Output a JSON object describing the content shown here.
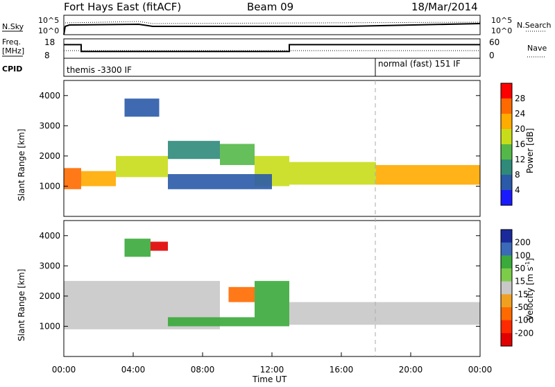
{
  "header": {
    "radar": "Fort Hays East (fitACF)",
    "beam": "Beam 09",
    "date": "18/Mar/2014"
  },
  "noise_panel": {
    "left_label": "N.Sky",
    "right_label": "N.Search",
    "left_ticks": [
      "10^5",
      "10^0"
    ],
    "right_ticks": [
      "10^5",
      "10^0"
    ]
  },
  "freq_panel": {
    "left_label_1": "Freq.",
    "left_label_2": "[MHz]",
    "right_label": "Nave",
    "left_ticks": [
      "18",
      "8"
    ],
    "right_ticks": [
      "60",
      "0"
    ],
    "freq_steps": [
      {
        "t_start": 0.0,
        "t_end": 1.0,
        "mhz": 15.0
      },
      {
        "t_start": 1.0,
        "t_end": 13.0,
        "mhz": 11.5
      },
      {
        "t_start": 13.0,
        "t_end": 24.0,
        "mhz": 15.0
      }
    ]
  },
  "cpid_panel": {
    "label": "CPID",
    "segments": [
      "themis -3300 IF",
      "normal (fast) 151 IF"
    ],
    "change_time": "18:00"
  },
  "chart_data": [
    {
      "type": "heatmap",
      "name": "power",
      "ylabel": "Slant Range [km]",
      "yticks": [
        1000,
        2000,
        3000,
        4000
      ],
      "ylim": [
        0,
        4500
      ],
      "xlim": [
        "00:00",
        "24:00"
      ],
      "colorbar": {
        "label": "Power [dB]",
        "ticks": [
          "28",
          "24",
          "20",
          "16",
          "12",
          "8",
          "4"
        ],
        "colors": [
          "#ff0000",
          "#ff6a00",
          "#ffab00",
          "#c8dd1a",
          "#54b848",
          "#2f8a7a",
          "#2a5aa8",
          "#1a1aff"
        ]
      },
      "echo_bands": [
        {
          "t_start": 0.0,
          "t_end": 1.0,
          "r_min": 900,
          "r_max": 1600,
          "power_db": 26
        },
        {
          "t_start": 1.0,
          "t_end": 3.0,
          "r_min": 1000,
          "r_max": 1500,
          "power_db": 24
        },
        {
          "t_start": 3.0,
          "t_end": 6.0,
          "r_min": 1300,
          "r_max": 2000,
          "power_db": 18
        },
        {
          "t_start": 6.0,
          "t_end": 9.0,
          "r_min": 1900,
          "r_max": 2500,
          "power_db": 12
        },
        {
          "t_start": 9.0,
          "t_end": 11.0,
          "r_min": 1700,
          "r_max": 2400,
          "power_db": 16
        },
        {
          "t_start": 11.0,
          "t_end": 13.0,
          "r_min": 1000,
          "r_max": 2000,
          "power_db": 20
        },
        {
          "t_start": 13.0,
          "t_end": 18.0,
          "r_min": 1050,
          "r_max": 1800,
          "power_db": 20
        },
        {
          "t_start": 18.0,
          "t_end": 24.0,
          "r_min": 1050,
          "r_max": 1700,
          "power_db": 22
        },
        {
          "t_start": 6.0,
          "t_end": 12.0,
          "r_min": 900,
          "r_max": 1400,
          "power_db": 8
        },
        {
          "t_start": 3.5,
          "t_end": 5.5,
          "r_min": 3300,
          "r_max": 3900,
          "power_db": 6
        }
      ]
    },
    {
      "type": "heatmap",
      "name": "velocity",
      "ylabel": "Slant Range [km]",
      "xlabel": "Time UT",
      "yticks": [
        1000,
        2000,
        3000,
        4000
      ],
      "ylim": [
        0,
        4500
      ],
      "xticks": [
        "00:00",
        "04:00",
        "08:00",
        "12:00",
        "16:00",
        "20:00",
        "00:00"
      ],
      "colorbar": {
        "label": "Velocity [m s^-1]",
        "ticks": [
          "200",
          "100",
          "50",
          "15",
          "-15",
          "-50",
          "-100",
          "-200"
        ],
        "colors": [
          "#1a2a9a",
          "#3a6ab8",
          "#3aaa3a",
          "#7ccc4a",
          "#c8c8c8",
          "#f0a020",
          "#ff6a00",
          "#ff2a00",
          "#e00000"
        ]
      },
      "echo_bands": [
        {
          "t_start": 0.0,
          "t_end": 9.0,
          "r_min": 900,
          "r_max": 2500,
          "velocity": 0
        },
        {
          "t_start": 9.5,
          "t_end": 11.0,
          "r_min": 1800,
          "r_max": 2300,
          "velocity": -40
        },
        {
          "t_start": 6.0,
          "t_end": 11.0,
          "r_min": 1000,
          "r_max": 1300,
          "velocity": 40
        },
        {
          "t_start": 11.0,
          "t_end": 13.0,
          "r_min": 1000,
          "r_max": 2500,
          "velocity": 40
        },
        {
          "t_start": 13.0,
          "t_end": 24.0,
          "r_min": 1050,
          "r_max": 1800,
          "velocity": 0
        },
        {
          "t_start": 3.5,
          "t_end": 5.0,
          "r_min": 3300,
          "r_max": 3900,
          "velocity": 60
        },
        {
          "t_start": 5.0,
          "t_end": 6.0,
          "r_min": 3500,
          "r_max": 3800,
          "velocity": -150
        }
      ]
    }
  ]
}
